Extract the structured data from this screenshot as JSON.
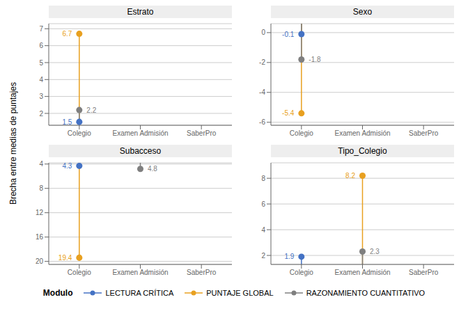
{
  "ylabel": "Brecha entre medias de puntajes",
  "legend_title": "Modulo",
  "legend": "bottom",
  "chart_data": [
    {
      "type": "lollipop",
      "title": "Estrato",
      "categories": [
        "Colegio",
        "Examen Admisión",
        "SaberPro"
      ],
      "series": [
        {
          "name": "LECTURA CRÍTICA",
          "color": "#4472C4",
          "values": [
            1.5,
            null,
            null
          ]
        },
        {
          "name": "PUNTAJE GLOBAL",
          "color": "#E8A020",
          "values": [
            6.7,
            null,
            null
          ]
        },
        {
          "name": "RAZONAMIENTO CUANTITATIVO",
          "color": "#7F7F7F",
          "values": [
            2.2,
            null,
            null
          ]
        }
      ],
      "ylim": [
        1.3,
        7.3
      ],
      "yticks": [
        2,
        3,
        4,
        5,
        6,
        7
      ],
      "grid": true,
      "data_labels": true
    },
    {
      "type": "lollipop",
      "title": "Sexo",
      "categories": [
        "Colegio",
        "Examen Admisión",
        "SaberPro"
      ],
      "series": [
        {
          "name": "LECTURA CRÍTICA",
          "color": "#4472C4",
          "values": [
            -0.1,
            null,
            null
          ]
        },
        {
          "name": "PUNTAJE GLOBAL",
          "color": "#E8A020",
          "values": [
            -5.4,
            null,
            null
          ]
        },
        {
          "name": "RAZONAMIENTO CUANTITATIVO",
          "color": "#7F7F7F",
          "values": [
            -1.8,
            null,
            null
          ]
        }
      ],
      "ylim": [
        -6.2,
        0.6
      ],
      "yticks": [
        0,
        -2,
        -4,
        -6
      ],
      "grid": true,
      "data_labels": true
    },
    {
      "type": "lollipop",
      "title": "Subacceso",
      "categories": [
        "Colegio",
        "Examen Admisión",
        "SaberPro"
      ],
      "series": [
        {
          "name": "LECTURA CRÍTICA",
          "color": "#4472C4",
          "values": [
            4.3,
            null,
            null
          ]
        },
        {
          "name": "PUNTAJE GLOBAL",
          "color": "#E8A020",
          "values": [
            19.4,
            null,
            null
          ]
        },
        {
          "name": "RAZONAMIENTO CUANTITATIVO",
          "color": "#7F7F7F",
          "values": [
            null,
            4.8,
            null
          ]
        }
      ],
      "ylim": [
        20.5,
        3.8
      ],
      "yticks": [
        20,
        16,
        12,
        8,
        4
      ],
      "grid": true,
      "data_labels": true
    },
    {
      "type": "lollipop",
      "title": "Tipo_Colegio",
      "categories": [
        "Colegio",
        "Examen Admisión",
        "SaberPro"
      ],
      "series": [
        {
          "name": "LECTURA CRÍTICA",
          "color": "#4472C4",
          "values": [
            1.9,
            null,
            null
          ]
        },
        {
          "name": "PUNTAJE GLOBAL",
          "color": "#E8A020",
          "values": [
            null,
            8.2,
            null
          ]
        },
        {
          "name": "RAZONAMIENTO CUANTITATIVO",
          "color": "#7F7F7F",
          "values": [
            null,
            2.3,
            null
          ]
        }
      ],
      "ylim": [
        1.3,
        9.2
      ],
      "yticks": [
        2,
        4,
        6,
        8
      ],
      "grid": true,
      "data_labels": true
    }
  ]
}
